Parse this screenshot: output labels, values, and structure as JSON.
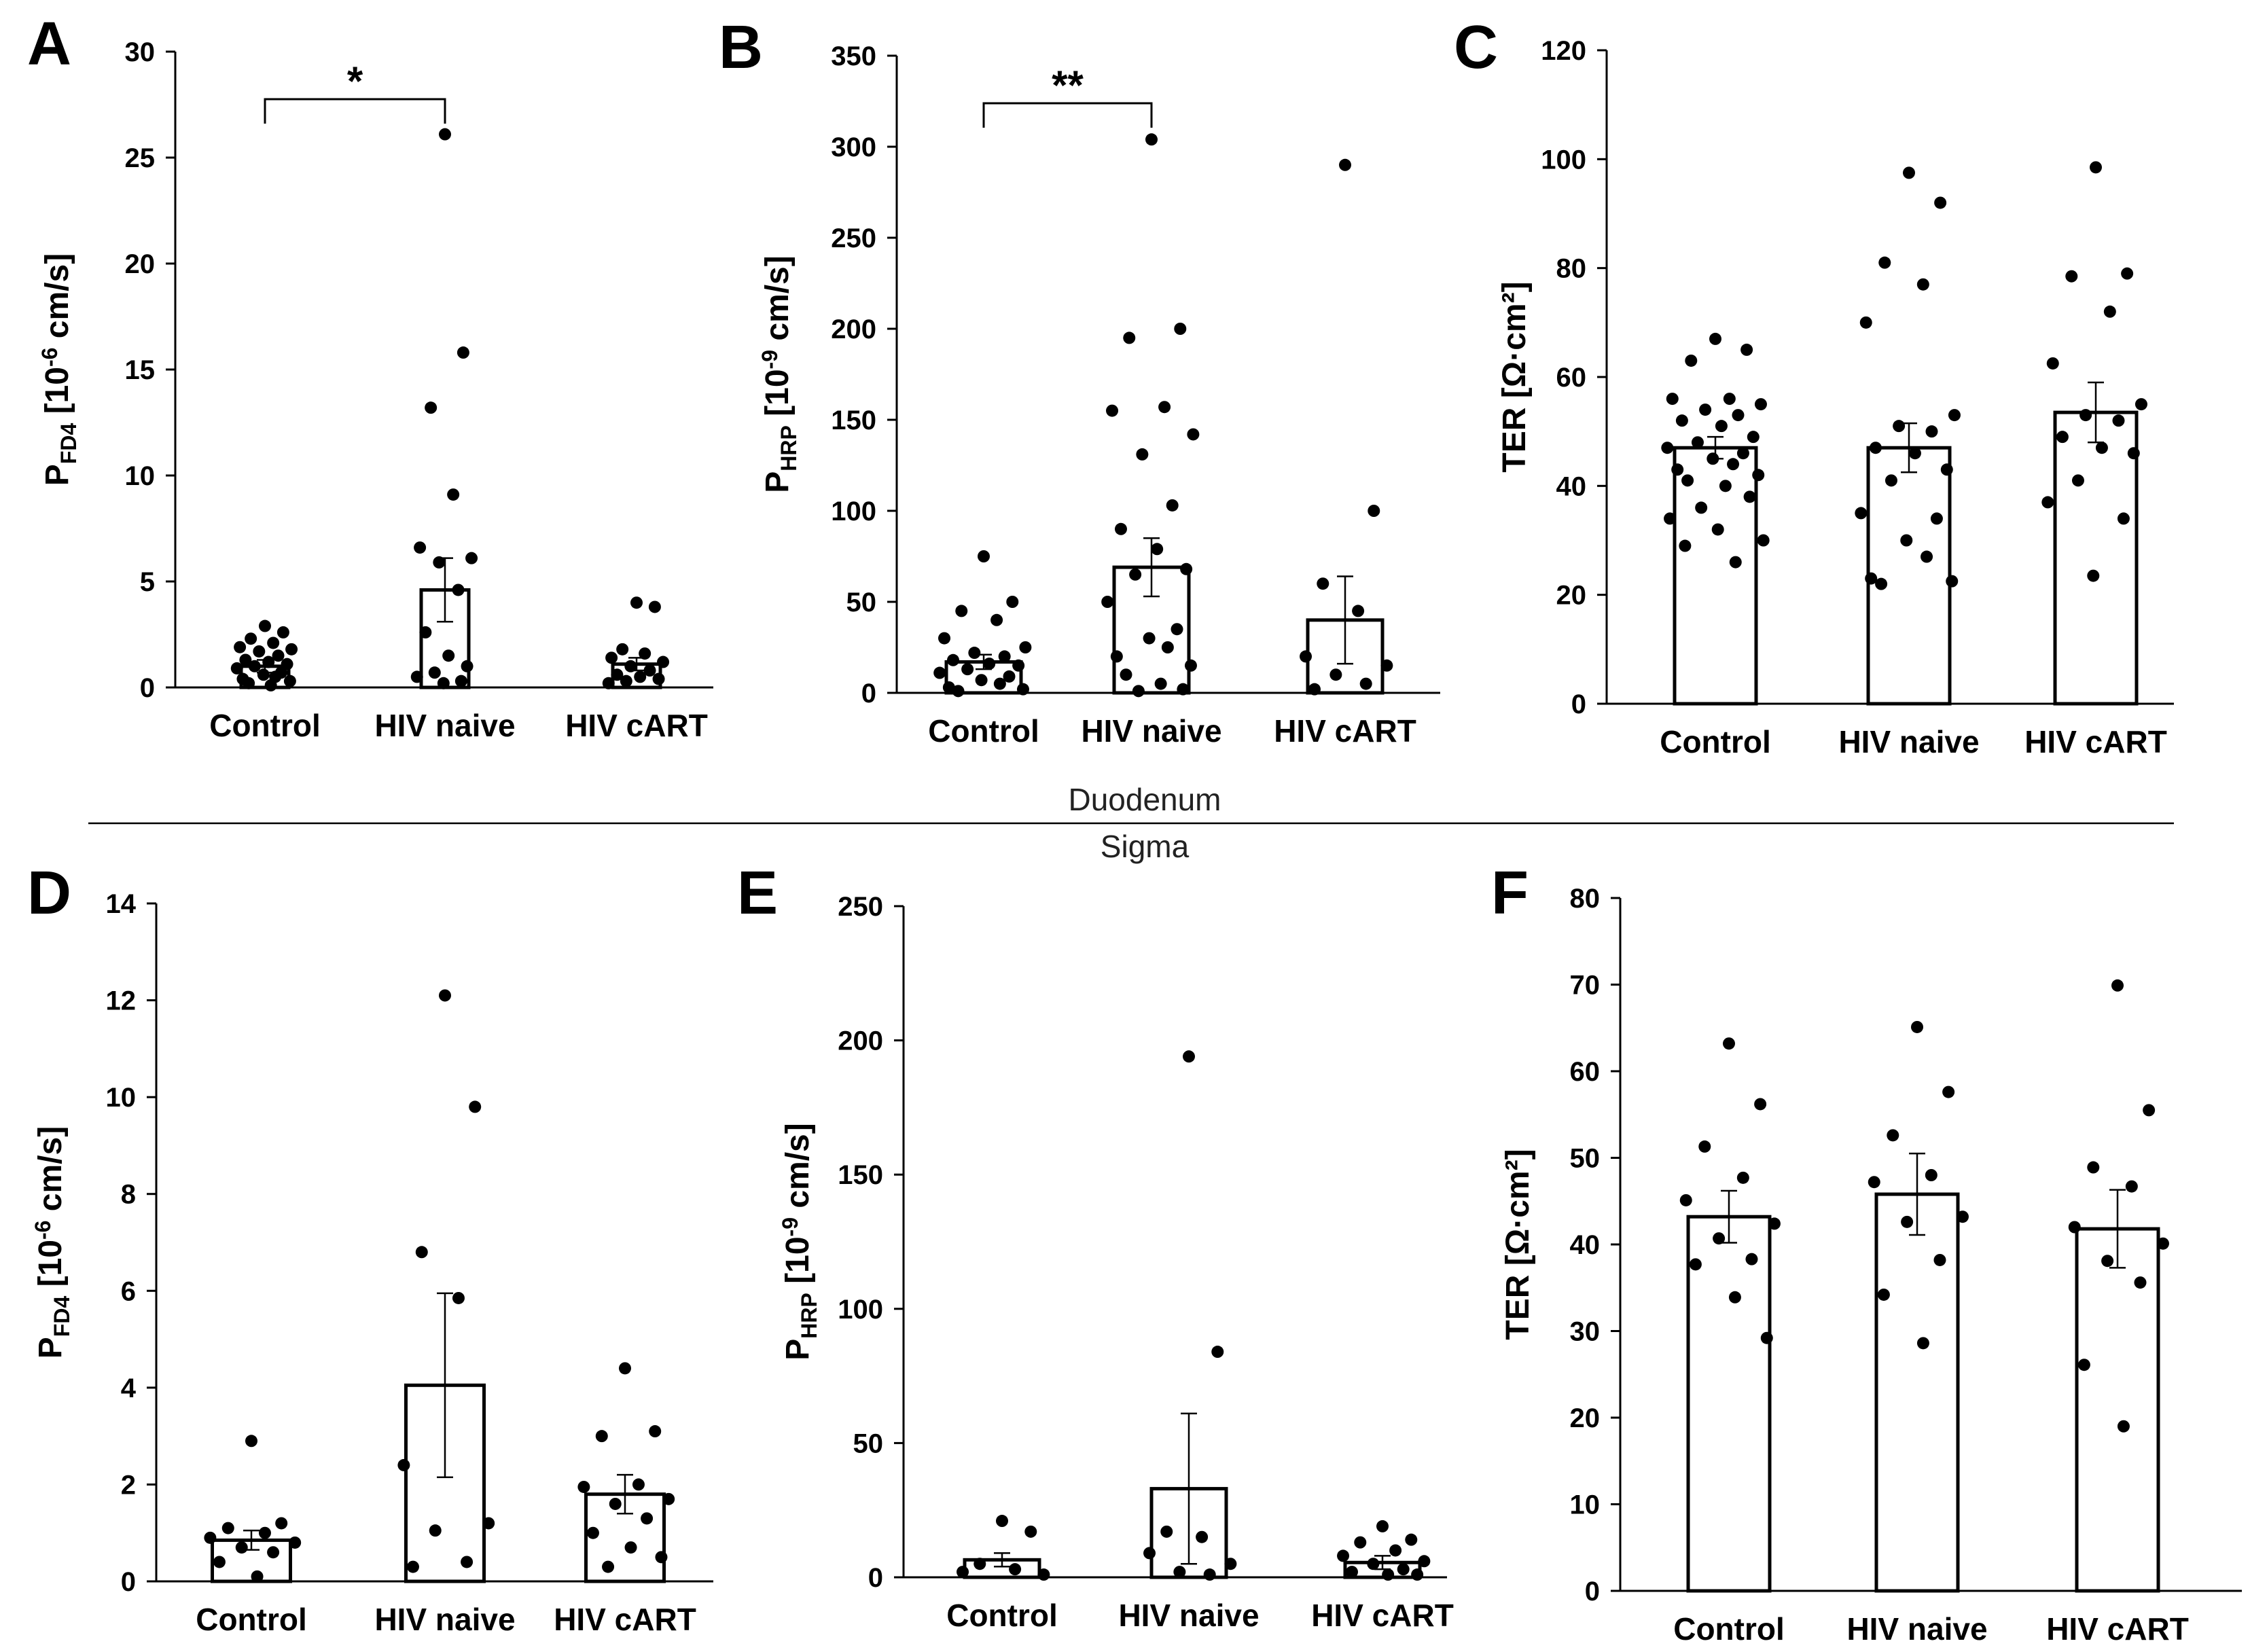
{
  "regions": {
    "top": "Duodenum",
    "bottom": "Sigma"
  },
  "chart_data": [
    {
      "panel": "A",
      "type": "bar",
      "ylabel": {
        "main": "P",
        "sub": "FD4",
        "rest": " [10",
        "sup": "-6",
        "tail": " cm/s]"
      },
      "ylim": [
        0,
        30
      ],
      "yticks": [
        0,
        5,
        10,
        15,
        20,
        25,
        30
      ],
      "categories": [
        "Control",
        "HIV naive",
        "HIV cART"
      ],
      "values": [
        1.0,
        4.6,
        1.1
      ],
      "errors": [
        0.3,
        1.5,
        0.3
      ],
      "significance": {
        "from": 0,
        "to": 1,
        "label": "*"
      },
      "points": [
        [
          2.9,
          2.6,
          2.3,
          2.1,
          1.9,
          1.8,
          1.7,
          1.5,
          1.3,
          1.2,
          1.1,
          1.0,
          0.9,
          0.7,
          0.6,
          0.5,
          0.4,
          0.3,
          0.2,
          0.1
        ],
        [
          26.1,
          15.8,
          13.2,
          9.1,
          6.6,
          6.1,
          5.9,
          4.6,
          2.6,
          1.5,
          1.0,
          0.7,
          0.5,
          0.3,
          0.2
        ],
        [
          4.0,
          3.8,
          1.8,
          1.6,
          1.4,
          1.2,
          1.0,
          0.8,
          0.6,
          0.5,
          0.4,
          0.3,
          0.2
        ]
      ]
    },
    {
      "panel": "B",
      "type": "bar",
      "ylabel": {
        "main": "P",
        "sub": "HRP",
        "rest": " [10",
        "sup": "-9",
        "tail": " cm/s]"
      },
      "ylim": [
        0,
        350
      ],
      "yticks": [
        0,
        50,
        100,
        150,
        200,
        250,
        300,
        350
      ],
      "categories": [
        "Control",
        "HIV naive",
        "HIV cART"
      ],
      "values": [
        17,
        69,
        40
      ],
      "errors": [
        4,
        16,
        24
      ],
      "significance": {
        "from": 0,
        "to": 1,
        "label": "**"
      },
      "points": [
        [
          75,
          50,
          45,
          40,
          30,
          25,
          22,
          20,
          18,
          16,
          15,
          13,
          11,
          9,
          7,
          5,
          3,
          2,
          1
        ],
        [
          304,
          200,
          195,
          157,
          155,
          142,
          131,
          103,
          90,
          79,
          68,
          65,
          50,
          35,
          30,
          25,
          20,
          15,
          10,
          5,
          2,
          1
        ],
        [
          290,
          100,
          60,
          45,
          20,
          15,
          10,
          5,
          2
        ]
      ]
    },
    {
      "panel": "C",
      "type": "bar",
      "ylabel": {
        "main": "TER [Ω·cm²]"
      },
      "ylim": [
        0,
        120
      ],
      "yticks": [
        0,
        20,
        40,
        60,
        80,
        100,
        120
      ],
      "categories": [
        "Control",
        "HIV naive",
        "HIV cART"
      ],
      "values": [
        47,
        47,
        53.5
      ],
      "errors": [
        2,
        4.5,
        5.5
      ],
      "points": [
        [
          67,
          65,
          63,
          56,
          56,
          55,
          54,
          53,
          52,
          51,
          49,
          48,
          47,
          46,
          45,
          44,
          43,
          42,
          41,
          40,
          38,
          36,
          34,
          32,
          30,
          29,
          26
        ],
        [
          97.5,
          92,
          81,
          77,
          70,
          53,
          51,
          50,
          47,
          46,
          43,
          41,
          35,
          34,
          30,
          27,
          23,
          22.5,
          22
        ],
        [
          98.5,
          79,
          78.5,
          72,
          62.5,
          55,
          53,
          52,
          49,
          47,
          46,
          41,
          37,
          34,
          23.5
        ]
      ]
    },
    {
      "panel": "D",
      "type": "bar",
      "ylabel": {
        "main": "P",
        "sub": "FD4",
        "rest": " [10",
        "sup": "-6",
        "tail": " cm/s]"
      },
      "ylim": [
        0,
        14
      ],
      "yticks": [
        0,
        2,
        4,
        6,
        8,
        10,
        12,
        14
      ],
      "categories": [
        "Control",
        "HIV naive",
        "HIV cART"
      ],
      "values": [
        0.85,
        4.05,
        1.8
      ],
      "errors": [
        0.2,
        1.9,
        0.4
      ],
      "points": [
        [
          2.9,
          1.2,
          1.1,
          1.0,
          0.9,
          0.8,
          0.7,
          0.6,
          0.4,
          0.1
        ],
        [
          12.1,
          9.8,
          6.8,
          5.85,
          2.4,
          1.2,
          1.05,
          0.4,
          0.3
        ],
        [
          4.4,
          3.1,
          3.0,
          2.0,
          1.95,
          1.7,
          1.6,
          1.3,
          1.0,
          0.7,
          0.5,
          0.3
        ]
      ]
    },
    {
      "panel": "E",
      "type": "bar",
      "ylabel": {
        "main": "P",
        "sub": "HRP",
        "rest": " [10",
        "sup": "-9",
        "tail": " cm/s]"
      },
      "ylim": [
        0,
        250
      ],
      "yticks": [
        0,
        50,
        100,
        150,
        200,
        250
      ],
      "categories": [
        "Control",
        "HIV naive",
        "HIV cART"
      ],
      "values": [
        6.5,
        33,
        5.5
      ],
      "errors": [
        2.5,
        28,
        2.5
      ],
      "points": [
        [
          21,
          17,
          5,
          3,
          2,
          1
        ],
        [
          194,
          84,
          17,
          15,
          9,
          5,
          2,
          1
        ],
        [
          19,
          14,
          13,
          10,
          8,
          6,
          5,
          3,
          2,
          1,
          1
        ]
      ]
    },
    {
      "panel": "F",
      "type": "bar",
      "ylabel": {
        "main": "TER [Ω·cm²]"
      },
      "ylim": [
        0,
        80
      ],
      "yticks": [
        0,
        10,
        20,
        30,
        40,
        50,
        60,
        70,
        80
      ],
      "categories": [
        "Control",
        "HIV naive",
        "HIV cART"
      ],
      "values": [
        43.2,
        45.8,
        41.8
      ],
      "errors": [
        3,
        4.7,
        4.5
      ],
      "points": [
        [
          63.2,
          56.2,
          51.3,
          47.7,
          45.1,
          42.4,
          40.7,
          38.3,
          37.7,
          33.9,
          29.2
        ],
        [
          65.1,
          57.6,
          52.6,
          48.0,
          47.2,
          43.2,
          42.6,
          38.2,
          34.2,
          28.6
        ],
        [
          69.9,
          55.5,
          48.9,
          46.7,
          42.0,
          40.1,
          38.1,
          35.6,
          26.1,
          19.0
        ]
      ]
    }
  ]
}
